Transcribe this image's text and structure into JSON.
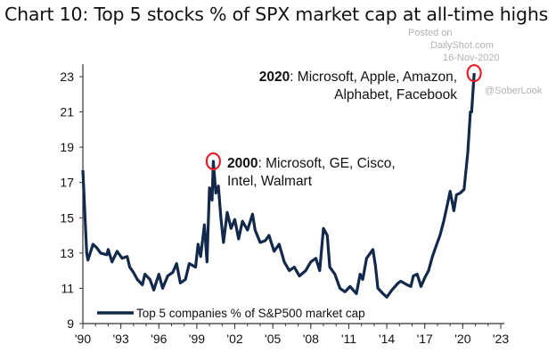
{
  "title": "Chart 10: Top 5 stocks % of SPX market cap at all-time highs",
  "watermark": {
    "line1": "Posted on",
    "line2": "DailyShot.com",
    "line3": "16-Nov-2020",
    "line4": "@SoberLook"
  },
  "colors": {
    "series": "#13294b",
    "highlight": "#e0202a",
    "axis": "#333333"
  },
  "chart_data": {
    "type": "line",
    "title": "Chart 10: Top 5 stocks % of SPX market cap at all-time highs",
    "xlabel": "",
    "ylabel": "",
    "xlim": [
      1990,
      2023
    ],
    "ylim": [
      9,
      24
    ],
    "x_ticks": [
      1990,
      1993,
      1996,
      1999,
      2002,
      2005,
      2008,
      2011,
      2014,
      2017,
      2020,
      2023
    ],
    "x_tick_labels": [
      "'90",
      "'93",
      "'96",
      "'99",
      "'02",
      "'05",
      "'08",
      "'11",
      "'14",
      "'17",
      "'20",
      "'23"
    ],
    "y_ticks": [
      9,
      11,
      13,
      15,
      17,
      19,
      21,
      23
    ],
    "y_tick_labels": [
      "9",
      "11",
      "13",
      "15",
      "17",
      "19",
      "21",
      "23"
    ],
    "grid": false,
    "legend": "bottom-left",
    "series": [
      {
        "name": "Top 5 companies % of S&P500 market cap",
        "x": [
          1990.0,
          1990.3,
          1990.4,
          1990.8,
          1991.1,
          1991.4,
          1991.9,
          1992.0,
          1992.3,
          1992.7,
          1993.1,
          1993.5,
          1993.7,
          1994.0,
          1994.3,
          1994.7,
          1994.9,
          1995.3,
          1995.6,
          1996.0,
          1996.3,
          1996.7,
          1997.1,
          1997.4,
          1997.7,
          1998.1,
          1998.4,
          1998.9,
          1999.1,
          1999.3,
          1999.6,
          1999.8,
          2000.0,
          2000.2,
          2000.3,
          2000.5,
          2000.7,
          2000.9,
          2001.1,
          2001.4,
          2001.7,
          2002.0,
          2002.3,
          2002.6,
          2003.0,
          2003.4,
          2003.6,
          2004.0,
          2004.4,
          2004.7,
          2005.1,
          2005.5,
          2005.9,
          2006.3,
          2006.7,
          2007.1,
          2007.6,
          2008.0,
          2008.4,
          2008.7,
          2009.0,
          2009.3,
          2009.5,
          2009.9,
          2010.3,
          2010.7,
          2011.1,
          2011.6,
          2011.9,
          2012.1,
          2012.4,
          2012.9,
          2013.1,
          2013.3,
          2013.7,
          2014.0,
          2014.4,
          2014.9,
          2015.1,
          2015.6,
          2015.9,
          2016.1,
          2016.4,
          2016.7,
          2017.0,
          2017.3,
          2017.6,
          2017.9,
          2018.2,
          2018.5,
          2018.8,
          2019.0,
          2019.3,
          2019.5,
          2019.8,
          2020.1,
          2020.4,
          2020.6,
          2020.7,
          2020.9
        ],
        "y": [
          17.7,
          13.0,
          12.6,
          13.5,
          13.3,
          13.0,
          12.9,
          13.2,
          12.5,
          13.1,
          12.7,
          12.8,
          12.2,
          11.9,
          11.5,
          11.2,
          11.8,
          11.5,
          10.9,
          11.8,
          11.0,
          11.7,
          11.9,
          12.4,
          11.3,
          11.5,
          12.4,
          12.2,
          13.5,
          12.8,
          14.6,
          12.5,
          16.7,
          16.0,
          18.2,
          16.4,
          16.8,
          15.0,
          13.6,
          15.3,
          14.4,
          14.9,
          13.8,
          14.8,
          14.3,
          15.2,
          14.3,
          13.6,
          13.7,
          14.0,
          13.1,
          13.5,
          12.5,
          12.0,
          12.2,
          11.7,
          12.0,
          12.5,
          12.7,
          12.0,
          14.4,
          14.0,
          12.2,
          11.8,
          11.0,
          10.8,
          11.1,
          10.7,
          11.8,
          11.5,
          12.7,
          13.2,
          12.3,
          11.0,
          10.7,
          10.5,
          10.9,
          11.3,
          11.4,
          11.2,
          11.1,
          11.7,
          11.8,
          11.1,
          11.6,
          12.0,
          12.8,
          13.4,
          14.0,
          14.8,
          15.8,
          16.5,
          15.4,
          16.3,
          16.4,
          16.6,
          18.7,
          21.0,
          21.0,
          23.2
        ]
      }
    ],
    "highlights": [
      {
        "x": 2000.3,
        "y": 18.2
      },
      {
        "x": 2020.9,
        "y": 23.2
      }
    ],
    "annotations": [
      {
        "bold": "2000",
        "text": ": Microsoft, GE, Cisco,",
        "text2": "Intel, Walmart"
      },
      {
        "bold": "2020",
        "text": ": Microsoft, Apple, Amazon,",
        "text2": "Alphabet, Facebook"
      }
    ]
  }
}
